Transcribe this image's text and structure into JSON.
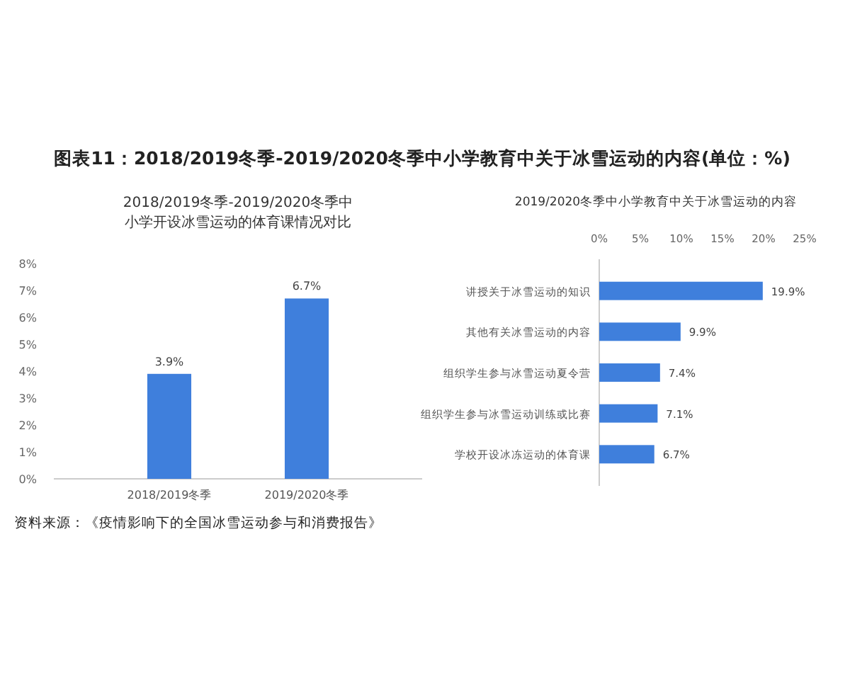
{
  "chart_data": [
    {
      "type": "bar",
      "title": "图表11：2018/2019冬季-2019/2020冬季中小学教育中关于冰雪运动的内容(单位：%)",
      "subtitle": "2018/2019冬季-2019/2020冬季中小学开设冰雪运动的体育课情况对比",
      "categories": [
        "2018/2019冬季",
        "2019/2020冬季"
      ],
      "values": [
        3.9,
        6.7
      ],
      "value_labels": [
        "3.9%",
        "6.7%"
      ],
      "color": "#3f7fdc",
      "ylim": [
        0,
        8
      ],
      "yticks": [
        {
          "value": 0,
          "label": "0%"
        },
        {
          "value": 1,
          "label": "1%"
        },
        {
          "value": 2,
          "label": "2%"
        },
        {
          "value": 3,
          "label": "3%"
        },
        {
          "value": 4,
          "label": "4%"
        },
        {
          "value": 5,
          "label": "5%"
        },
        {
          "value": 6,
          "label": "6%"
        },
        {
          "value": 7,
          "label": "7%"
        },
        {
          "value": 8,
          "label": "8%"
        }
      ],
      "grid": false,
      "annotations": [
        "资料来源：《疫情影响下的全国冰雪运动参与和消费报告》"
      ]
    },
    {
      "type": "bar",
      "orientation": "horizontal",
      "title": "2019/2020冬季中小学教育中关于冰雪运动的内容",
      "categories": [
        "讲授关于冰雪运动的知识",
        "其他有关冰雪运动的内容",
        "组织学生参与冰雪运动夏令营",
        "组织学生参与冰雪运动训练或比赛",
        "学校开设冰冻运动的体育课"
      ],
      "values": [
        19.9,
        9.9,
        7.4,
        7.1,
        6.7
      ],
      "value_labels": [
        "19.9%",
        "9.9%",
        "7.4%",
        "7.1%",
        "6.7%"
      ],
      "color": "#3f7fdc",
      "xlim": [
        0,
        25
      ],
      "xticks": [
        {
          "value": 0,
          "label": "0%"
        },
        {
          "value": 5,
          "label": "5%"
        },
        {
          "value": 10,
          "label": "10%"
        },
        {
          "value": 15,
          "label": "15%"
        },
        {
          "value": 20,
          "label": "20%"
        },
        {
          "value": 25,
          "label": "25%"
        }
      ],
      "grid": false
    }
  ]
}
